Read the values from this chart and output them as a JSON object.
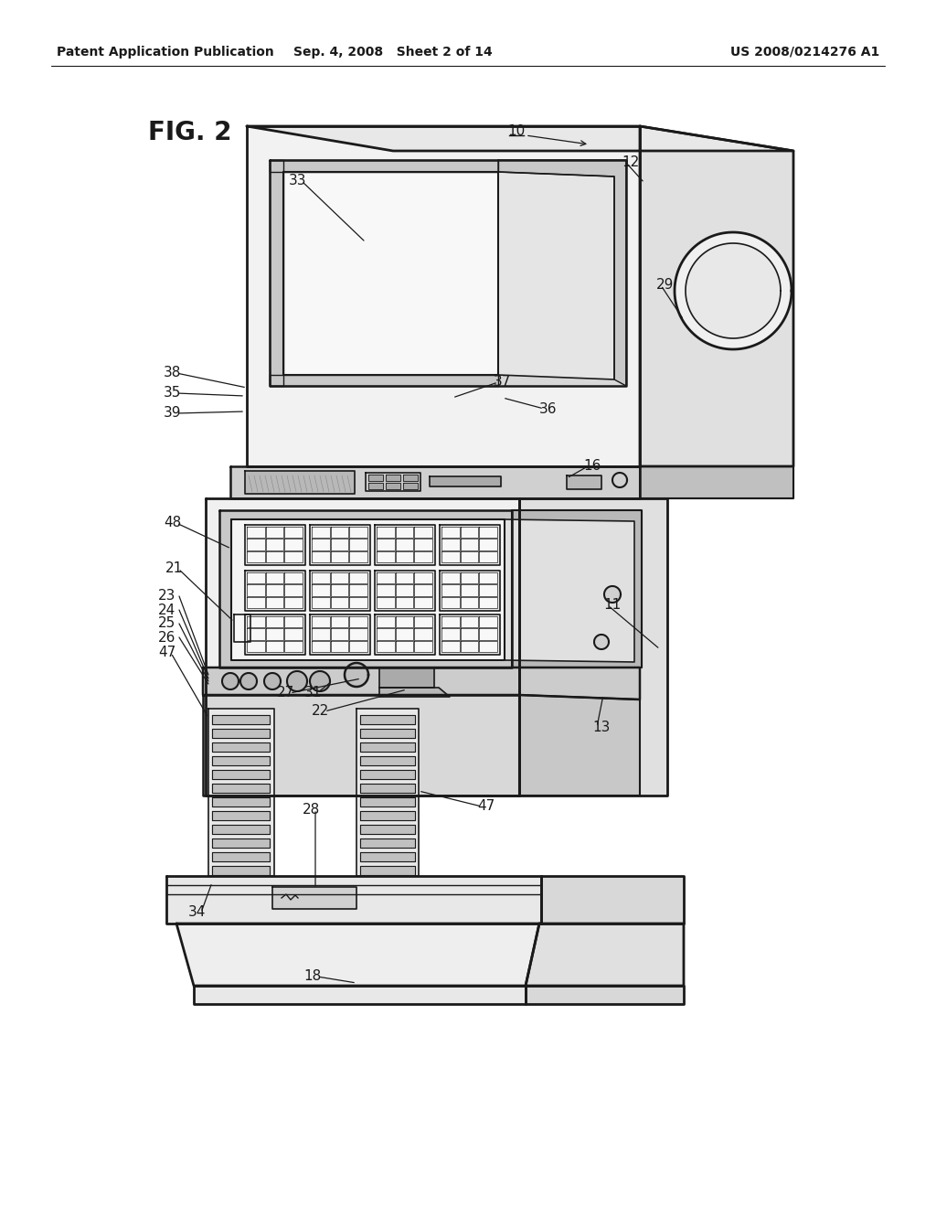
{
  "bg_color": "#ffffff",
  "line_color": "#1a1a1a",
  "header_left": "Patent Application Publication",
  "header_mid": "Sep. 4, 2008   Sheet 2 of 14",
  "header_right": "US 2008/0214276 A1",
  "fig_label": "FIG. 2"
}
